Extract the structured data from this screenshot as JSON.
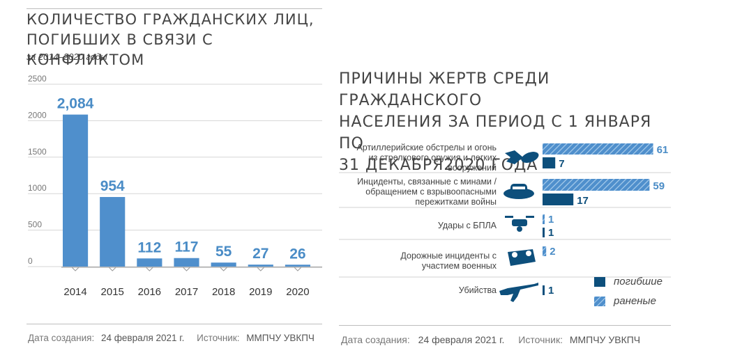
{
  "left": {
    "title_line1": "КОЛИЧЕСТВО ГРАЖДАНСКИХ ЛИЦ,",
    "title_line2": "ПОГИБШИХ В СВЯЗИ С КОНФЛИКТОМ",
    "subtitle": "за 2014–2020 годы",
    "footer_date_label": "Дата создания:",
    "footer_date": "24 февраля 2021 г.",
    "footer_source_label": "Источник:",
    "footer_source": "ММПЧУ УВКПЧ"
  },
  "right": {
    "title_line1": "ПРИЧИНЫ ЖЕРТВ СРЕДИ ГРАЖДАНСКОГО",
    "title_line2": "НАСЕЛЕНИЯ ЗА ПЕРИОД С 1 ЯНВАРЯ ПО",
    "title_line3": "31 ДЕКАБРЯ2020 ГОДА",
    "footer_date_label": "Дата создания:",
    "footer_date": "24 февраля 2021 г.",
    "footer_source_label": "Источник:",
    "footer_source": "ММПЧУ УВКПЧ"
  },
  "colors": {
    "bar": "#4f8fcc",
    "dark": "#0d4f7c",
    "light": "#4f8fcc",
    "label": "#4a8cc6",
    "axis": "#9a9a9a"
  },
  "chart_data": [
    {
      "type": "bar",
      "title": "КОЛИЧЕСТВО ГРАЖДАНСКИХ ЛИЦ, ПОГИБШИХ В СВЯЗИ С КОНФЛИКТОМ",
      "subtitle": "за 2014–2020 годы",
      "categories": [
        "2014",
        "2015",
        "2016",
        "2017",
        "2018",
        "2019",
        "2020"
      ],
      "values": [
        2084,
        954,
        112,
        117,
        55,
        27,
        26
      ],
      "value_labels": [
        "2,084",
        "954",
        "112",
        "117",
        "55",
        "27",
        "26"
      ],
      "ylim": [
        0,
        2500
      ],
      "yticks": [
        "2500",
        "2000",
        "1500",
        "1000",
        "500",
        "0"
      ],
      "grid": true
    },
    {
      "type": "bar",
      "orientation": "horizontal",
      "title": "ПРИЧИНЫ ЖЕРТВ СРЕДИ ГРАЖДАНСКОГО НАСЕЛЕНИЯ ЗА ПЕРИОД С 1 ЯНВАРЯ ПО 31 ДЕКАБРЯ2020 ГОДА",
      "categories": [
        [
          "Артиллерийские обстрелы и огонь",
          "из стрелкового оружия и легких",
          "вооружений"
        ],
        [
          "Инциденты, связанные с минами /",
          "обращением с взрывоопасными",
          "пережитками войны"
        ],
        [
          "Удары с БПЛА"
        ],
        [
          "Дорожные инциденты с",
          "участием военных"
        ],
        [
          "Убийства"
        ]
      ],
      "icons": [
        "shell-icon",
        "landmine-icon",
        "drone-icon",
        "overturned-vehicle-icon",
        "rifle-icon"
      ],
      "series": [
        {
          "name": "раненые",
          "style": "hatched",
          "values": [
            61,
            59,
            1,
            2,
            0
          ]
        },
        {
          "name": "погибшие",
          "style": "solid",
          "values": [
            7,
            17,
            1,
            0,
            1
          ]
        }
      ],
      "legend": {
        "position": "bottom-right",
        "items": [
          "погибшие",
          "раненые"
        ]
      }
    }
  ]
}
